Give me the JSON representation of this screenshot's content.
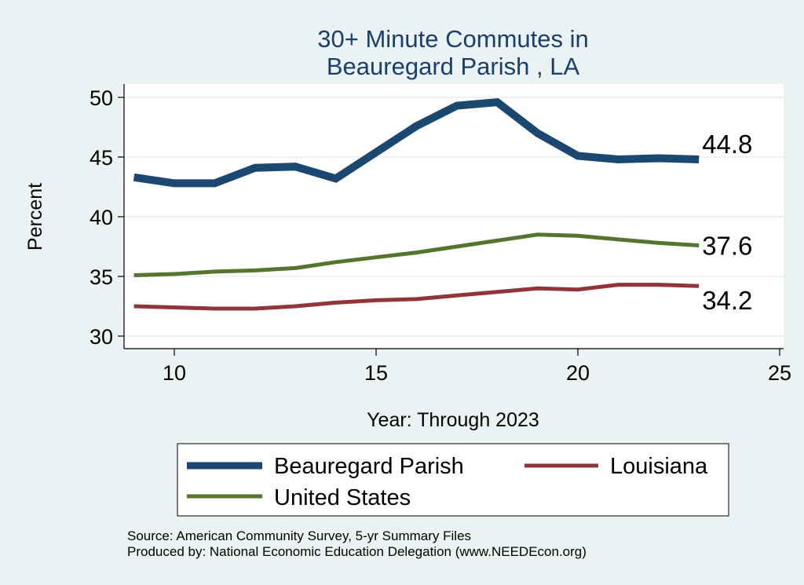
{
  "chart_data": {
    "type": "line",
    "title": [
      "30+ Minute Commutes in",
      "Beauregard Parish , LA"
    ],
    "xlabel": "Year: Through 2023",
    "ylabel": "Percent",
    "xlim": [
      8.7,
      25.2
    ],
    "ylim": [
      29.2,
      51.2
    ],
    "xticks": [
      10,
      15,
      20,
      25
    ],
    "yticks": [
      30,
      35,
      40,
      45,
      50
    ],
    "grid": true,
    "x": [
      9,
      10,
      11,
      12,
      13,
      14,
      15,
      16,
      17,
      18,
      19,
      20,
      21,
      22,
      23
    ],
    "series": [
      {
        "name": "Beauregard Parish",
        "color": "#1a4870",
        "width": 10,
        "values": [
          43.3,
          42.8,
          42.8,
          44.1,
          44.2,
          43.2,
          45.4,
          47.6,
          49.3,
          49.6,
          47.0,
          45.1,
          44.8,
          44.9,
          44.8
        ],
        "end_label": "44.8"
      },
      {
        "name": "Louisiana",
        "color": "#90353b",
        "width": 5,
        "values": [
          32.5,
          32.4,
          32.3,
          32.3,
          32.5,
          32.8,
          33.0,
          33.1,
          33.4,
          33.7,
          34.0,
          33.9,
          34.3,
          34.3,
          34.2
        ],
        "end_label": "34.2"
      },
      {
        "name": "United States",
        "color": "#55752f",
        "width": 5,
        "values": [
          35.1,
          35.2,
          35.4,
          35.5,
          35.7,
          36.2,
          36.6,
          37.0,
          37.5,
          38.0,
          38.5,
          38.4,
          38.1,
          37.8,
          37.6
        ],
        "end_label": "37.6"
      }
    ],
    "legend": {
      "position": "bottom",
      "entries": [
        "Beauregard Parish",
        "Louisiana",
        "United States"
      ]
    },
    "notes": [
      "Source: American Community Survey, 5-yr Summary Files",
      "Produced by: National Economic Education Delegation (www.NEEDEcon.org)"
    ]
  }
}
